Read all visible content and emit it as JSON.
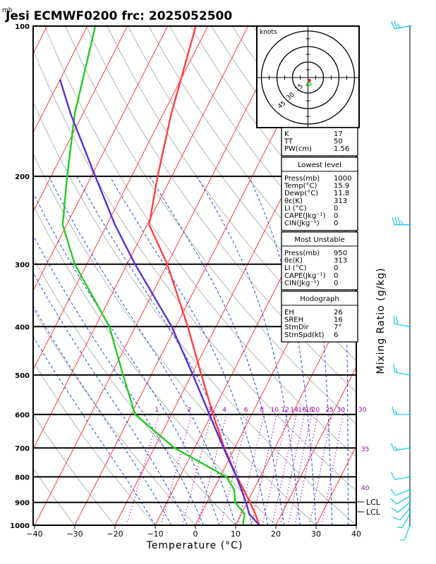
{
  "chart_data": {
    "type": "skew-t",
    "title": "Jesi ECMWF0200  frc: 2025052500",
    "pressure_unit": "mb",
    "xlabel": "Temperature (°C)",
    "right_label": "Mixing Ratio (g/kg)",
    "xlim": [
      -40,
      40
    ],
    "x_ticks": [
      "−40",
      "−30",
      "−20",
      "−10",
      "0",
      "10",
      "20",
      "30",
      "40"
    ],
    "x_tick_values": [
      -40,
      -30,
      -20,
      -10,
      0,
      10,
      20,
      30,
      40
    ],
    "p_ticks": [
      "100",
      "200",
      "300",
      "400",
      "500",
      "600",
      "700",
      "800",
      "900",
      "1000"
    ],
    "p_tick_values": [
      100,
      200,
      300,
      400,
      500,
      600,
      700,
      800,
      900,
      1000
    ],
    "ylim": [
      1000,
      100
    ],
    "mixing_ratio_labels": [
      "1",
      "2",
      "3",
      "4",
      "6",
      "8",
      "10",
      "12",
      "14",
      "16",
      "18",
      "20",
      "25",
      "30"
    ],
    "mixing_ratio_values": [
      1,
      2,
      3,
      4,
      6,
      8,
      10,
      12,
      14,
      16,
      18,
      20,
      25,
      30
    ],
    "theta_e_labels": [
      "30",
      "35",
      "40"
    ],
    "lcl_labels": [
      "LCL",
      "LCL"
    ],
    "series": [
      {
        "name": "Temperature",
        "color": "#ff4040",
        "points": [
          {
            "p": 1000,
            "t": 15.9
          },
          {
            "p": 950,
            "t": 13.5
          },
          {
            "p": 900,
            "t": 10.7
          },
          {
            "p": 850,
            "t": 7.6
          },
          {
            "p": 800,
            "t": 4.2
          },
          {
            "p": 700,
            "t": -2.6
          },
          {
            "p": 600,
            "t": -9.6
          },
          {
            "p": 500,
            "t": -17.5
          },
          {
            "p": 400,
            "t": -27.0
          },
          {
            "p": 300,
            "t": -40.0
          },
          {
            "p": 250,
            "t": -49.5
          },
          {
            "p": 200,
            "t": -53.5
          },
          {
            "p": 150,
            "t": -58.0
          },
          {
            "p": 100,
            "t": -63.0
          }
        ]
      },
      {
        "name": "Dewpoint",
        "color": "#22cc22",
        "points": [
          {
            "p": 1000,
            "t": 11.8
          },
          {
            "p": 950,
            "t": 10.8
          },
          {
            "p": 900,
            "t": 7.0
          },
          {
            "p": 850,
            "t": 5.2
          },
          {
            "p": 800,
            "t": 1.6
          },
          {
            "p": 700,
            "t": -15.0
          },
          {
            "p": 600,
            "t": -29.0
          },
          {
            "p": 500,
            "t": -37.0
          },
          {
            "p": 400,
            "t": -46.5
          },
          {
            "p": 300,
            "t": -63.0
          },
          {
            "p": 250,
            "t": -71.0
          },
          {
            "p": 200,
            "t": -76.0
          },
          {
            "p": 150,
            "t": -82.0
          },
          {
            "p": 100,
            "t": -88.0
          }
        ]
      },
      {
        "name": "Parcel",
        "color": "#5a2ed8",
        "points": [
          {
            "p": 1000,
            "t": 15.9
          },
          {
            "p": 950,
            "t": 12.0
          },
          {
            "p": 900,
            "t": 9.7
          },
          {
            "p": 850,
            "t": 7.0
          },
          {
            "p": 800,
            "t": 4.1
          },
          {
            "p": 700,
            "t": -2.8
          },
          {
            "p": 600,
            "t": -10.5
          },
          {
            "p": 500,
            "t": -19.6
          },
          {
            "p": 400,
            "t": -31.0
          },
          {
            "p": 300,
            "t": -48.0
          },
          {
            "p": 250,
            "t": -58.0
          },
          {
            "p": 200,
            "t": -69.0
          },
          {
            "p": 150,
            "t": -83.0
          },
          {
            "p": 128,
            "t": -90.0
          }
        ]
      }
    ],
    "wind_barbs": [
      {
        "p": 1000,
        "dir": 200,
        "spd": 5
      },
      {
        "p": 950,
        "dir": 210,
        "spd": 5
      },
      {
        "p": 925,
        "dir": 220,
        "spd": 10
      },
      {
        "p": 900,
        "dir": 230,
        "spd": 10
      },
      {
        "p": 875,
        "dir": 240,
        "spd": 10
      },
      {
        "p": 850,
        "dir": 250,
        "spd": 10
      },
      {
        "p": 800,
        "dir": 260,
        "spd": 10
      },
      {
        "p": 700,
        "dir": 260,
        "spd": 15
      },
      {
        "p": 600,
        "dir": 270,
        "spd": 15
      },
      {
        "p": 500,
        "dir": 280,
        "spd": 15
      },
      {
        "p": 400,
        "dir": 280,
        "spd": 20
      },
      {
        "p": 250,
        "dir": 270,
        "spd": 35
      },
      {
        "p": 100,
        "dir": 260,
        "spd": 25
      }
    ],
    "hodograph": {
      "units": "knots",
      "rings": [
        "15",
        "30",
        "45"
      ],
      "ring_values": [
        15,
        30,
        45
      ],
      "trace": [
        [
          0,
          -3
        ],
        [
          2,
          -5
        ],
        [
          -1,
          -6
        ],
        [
          1,
          -8
        ],
        [
          4,
          -6
        ]
      ]
    }
  },
  "indices": {
    "rows": [
      {
        "label": "K",
        "value": "17"
      },
      {
        "label": "TT",
        "value": "50"
      },
      {
        "label": "PW(cm)",
        "value": "1.56"
      }
    ]
  },
  "lowest_level": {
    "header": "Lowest level",
    "rows": [
      {
        "label": "Press(mb)",
        "value": "1000"
      },
      {
        "label": "Temp(°C)",
        "value": "15.9"
      },
      {
        "label": "Dewp(°C)",
        "value": "11.8"
      },
      {
        "label": "θε(K)",
        "value": "313"
      },
      {
        "label": "LI (°C)",
        "value": "0"
      },
      {
        "label": "CAPE(Jkg⁻¹)",
        "value": "0"
      },
      {
        "label": "CIN(Jkg⁻¹)",
        "value": "0"
      }
    ]
  },
  "most_unstable": {
    "header": "Most Unstable",
    "rows": [
      {
        "label": "Press(mb)",
        "value": "950"
      },
      {
        "label": "θε(K)",
        "value": "313"
      },
      {
        "label": "LI (°C)",
        "value": "0"
      },
      {
        "label": "CAPE(Jkg⁻¹)",
        "value": "0"
      },
      {
        "label": "CIN(Jkg⁻¹)",
        "value": "0"
      }
    ]
  },
  "hodograph_stats": {
    "header": "Hodograph",
    "rows": [
      {
        "label": "EH",
        "value": "26"
      },
      {
        "label": "SREH",
        "value": "16"
      },
      {
        "label": "StmDir",
        "value": "7°"
      },
      {
        "label": "StmSpd(kt)",
        "value": "6"
      }
    ]
  }
}
